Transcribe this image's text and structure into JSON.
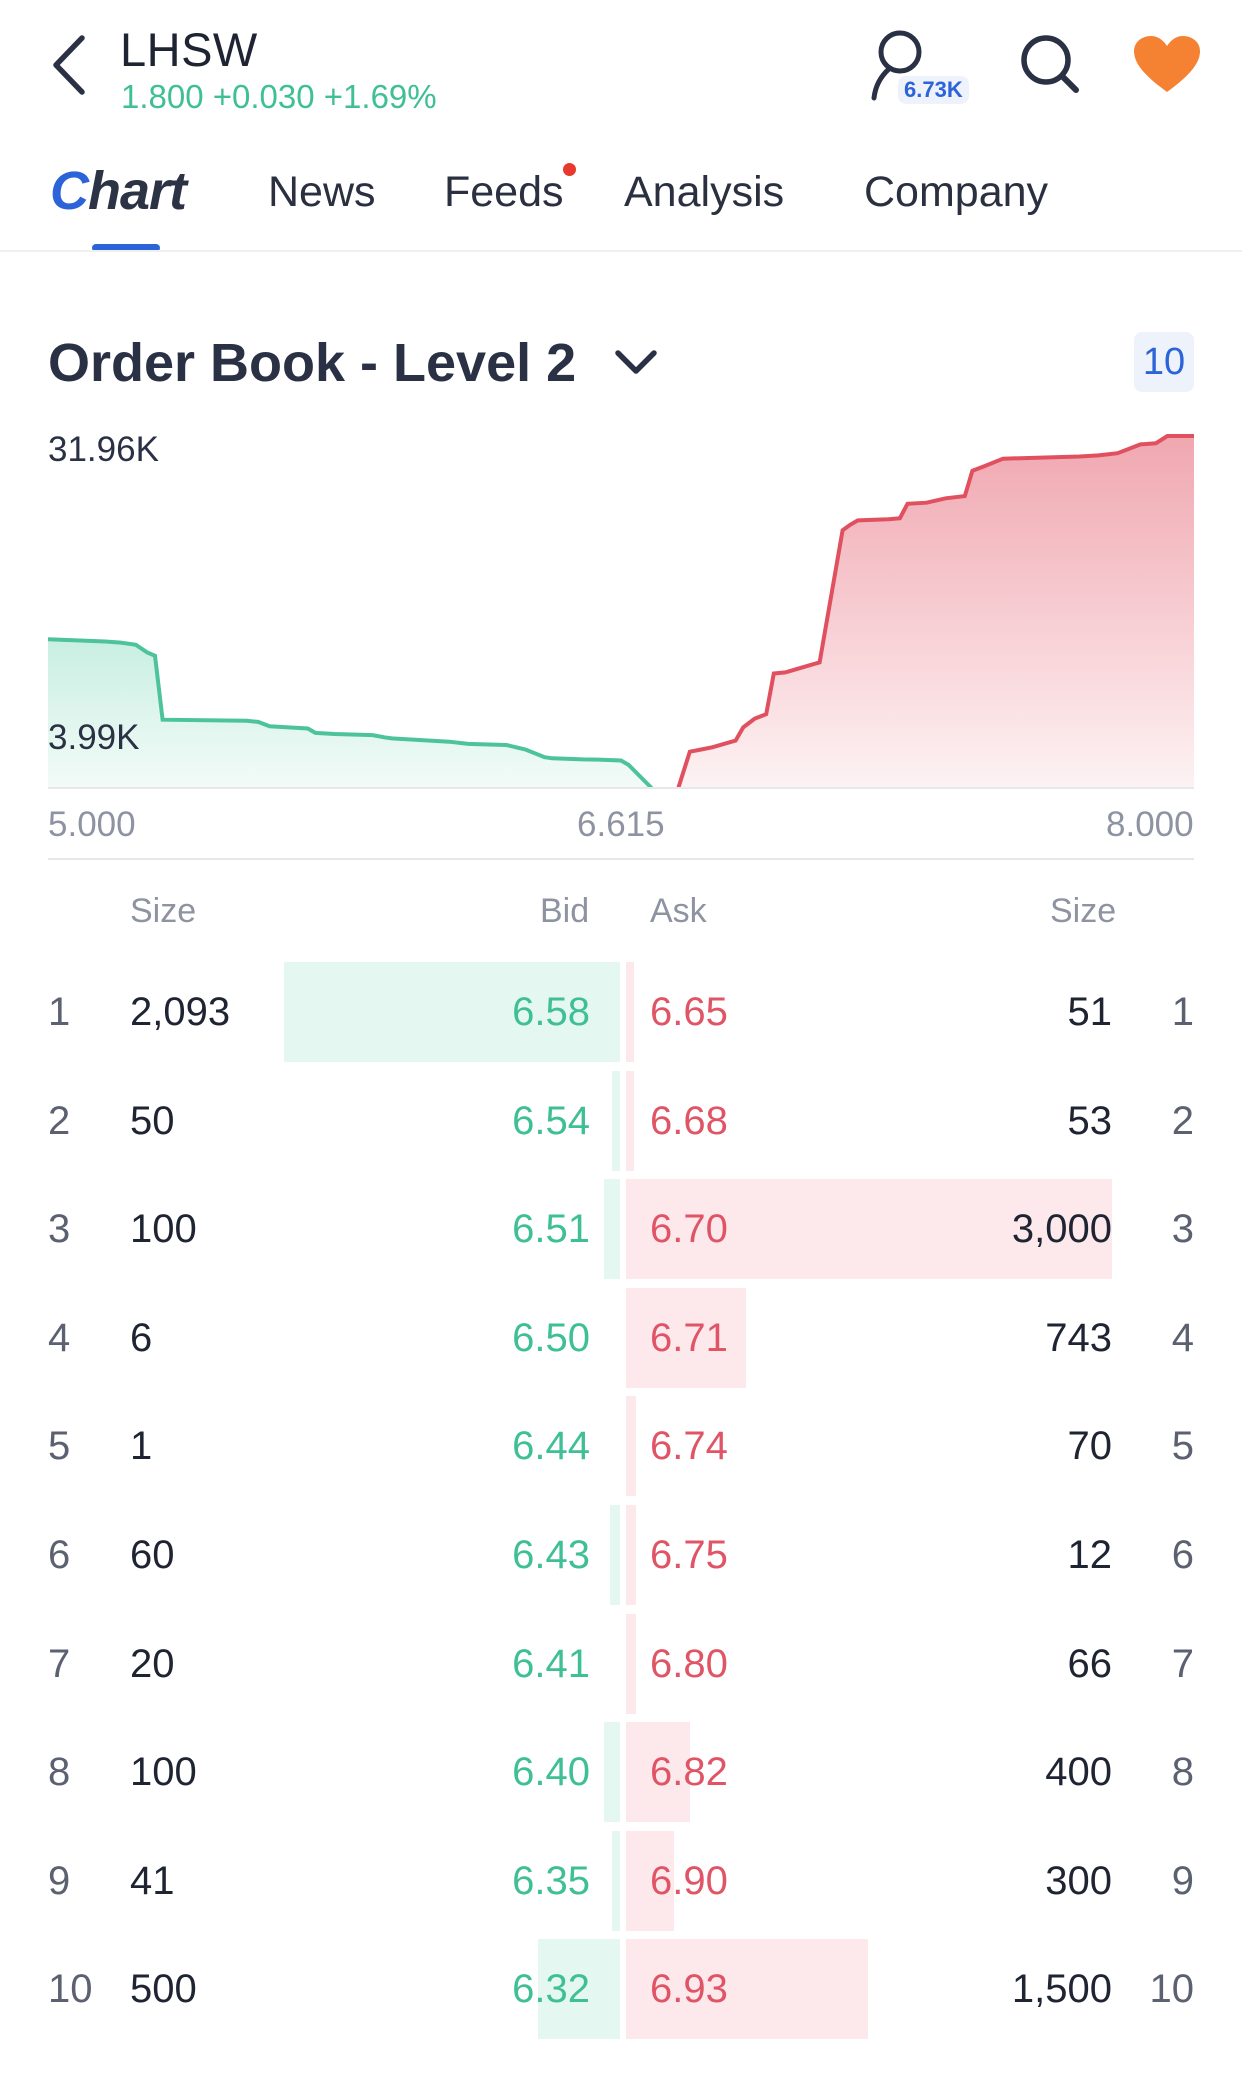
{
  "header": {
    "ticker": "LHSW",
    "quote": "1.800 +0.030 +1.69%",
    "followers_badge": "6.73K",
    "icons": [
      "back-chevron-icon",
      "user-icon",
      "search-icon",
      "heart-icon"
    ],
    "colors": {
      "accent": "#2d63d8",
      "up": "#3fbf95",
      "down": "#e05566",
      "favorite": "#f58233"
    }
  },
  "tabs": [
    {
      "label_c": "C",
      "label_rest": "hart",
      "active": true
    },
    {
      "label": "News"
    },
    {
      "label": "Feeds",
      "has_dot": true
    },
    {
      "label": "Analysis"
    },
    {
      "label": "Company"
    }
  ],
  "order_book": {
    "title": "Order Book - Level 2",
    "levels": "10",
    "chart": {
      "y_top_label": "31.96K",
      "y_mid_label": "3.99K",
      "x_left_label": "5.000",
      "x_mid_label": "6.615",
      "x_right_label": "8.000"
    },
    "columns": {
      "bid_size": "Size",
      "bid": "Bid",
      "ask": "Ask",
      "ask_size": "Size"
    },
    "rows": [
      {
        "level": "1",
        "bid_size": "2,093",
        "bid": "6.58",
        "ask": "6.65",
        "ask_size": "51"
      },
      {
        "level": "2",
        "bid_size": "50",
        "bid": "6.54",
        "ask": "6.68",
        "ask_size": "53"
      },
      {
        "level": "3",
        "bid_size": "100",
        "bid": "6.51",
        "ask": "6.70",
        "ask_size": "3,000"
      },
      {
        "level": "4",
        "bid_size": "6",
        "bid": "6.50",
        "ask": "6.71",
        "ask_size": "743"
      },
      {
        "level": "5",
        "bid_size": "1",
        "bid": "6.44",
        "ask": "6.74",
        "ask_size": "70"
      },
      {
        "level": "6",
        "bid_size": "60",
        "bid": "6.43",
        "ask": "6.75",
        "ask_size": "12"
      },
      {
        "level": "7",
        "bid_size": "20",
        "bid": "6.41",
        "ask": "6.80",
        "ask_size": "66"
      },
      {
        "level": "8",
        "bid_size": "100",
        "bid": "6.40",
        "ask": "6.82",
        "ask_size": "400"
      },
      {
        "level": "9",
        "bid_size": "41",
        "bid": "6.35",
        "ask": "6.90",
        "ask_size": "300"
      },
      {
        "level": "10",
        "bid_size": "500",
        "bid": "6.32",
        "ask": "6.93",
        "ask_size": "1,500"
      }
    ]
  },
  "chart_data": {
    "type": "area",
    "title": "",
    "xlim": [
      5.0,
      8.0
    ],
    "ylim": [
      0,
      31960
    ],
    "mid_price": 6.615,
    "series": [
      {
        "x": [
          5.0,
          5.15,
          5.19,
          5.23,
          5.26,
          5.28,
          5.3,
          5.52,
          5.55,
          5.58,
          5.63,
          5.68,
          5.7,
          5.75,
          5.85,
          5.88,
          5.9,
          5.95,
          6.0,
          6.05,
          6.1,
          6.12,
          6.2,
          6.25,
          6.3,
          6.32,
          6.4,
          6.44,
          6.5,
          6.52,
          6.58
        ],
        "values": [
          13500,
          13300,
          13200,
          13000,
          12300,
          12000,
          6200,
          6100,
          6000,
          5600,
          5500,
          5400,
          5000,
          4900,
          4800,
          4600,
          4500,
          4400,
          4300,
          4200,
          4000,
          3990,
          3900,
          3500,
          2800,
          2700,
          2600,
          2580,
          2500,
          2093,
          0
        ]
      },
      {
        "x": [
          6.65,
          6.68,
          6.71,
          6.74,
          6.8,
          6.82,
          6.85,
          6.88,
          6.9,
          6.93,
          6.95,
          7.0,
          7.02,
          7.08,
          7.1,
          7.12,
          7.2,
          7.23,
          7.25,
          7.3,
          7.35,
          7.4,
          7.42,
          7.45,
          7.5,
          7.6,
          7.7,
          7.75,
          7.8,
          7.86,
          7.9,
          7.93,
          8.0
        ],
        "values": [
          0,
          3300,
          3500,
          3700,
          4300,
          5500,
          6300,
          6700,
          10400,
          10500,
          10700,
          11200,
          11400,
          23400,
          23900,
          24300,
          24400,
          24500,
          25800,
          25900,
          26300,
          26500,
          28800,
          29200,
          29900,
          30000,
          30100,
          30200,
          30400,
          31200,
          31300,
          31960,
          31960
        ]
      }
    ]
  }
}
